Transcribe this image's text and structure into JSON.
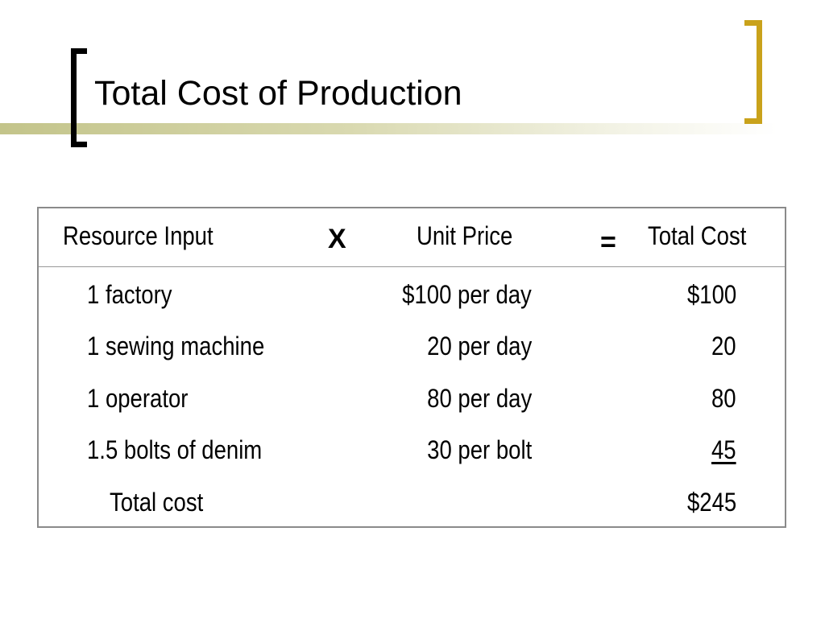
{
  "slide": {
    "title": "Total Cost of Production"
  },
  "table": {
    "headers": {
      "resource": "Resource Input",
      "times_op": "X",
      "unit_price": "Unit Price",
      "equals_op": "=",
      "total_cost": "Total Cost"
    },
    "rows": [
      {
        "resource": "1 factory",
        "unit_price": "$100 per day",
        "total": "$100"
      },
      {
        "resource": "1 sewing machine",
        "unit_price": "20 per day",
        "total": "20"
      },
      {
        "resource": "1 operator",
        "unit_price": "80 per day",
        "total": "80"
      },
      {
        "resource": "1.5 bolts of denim",
        "unit_price": "30 per bolt",
        "total": "45"
      }
    ],
    "total_row": {
      "label": "Total cost",
      "total": "$245"
    }
  },
  "colors": {
    "left_bracket": "#000000",
    "right_bracket": "#c9a21b",
    "rule_start": "#c3c48a",
    "table_border": "#8a8a8a"
  }
}
